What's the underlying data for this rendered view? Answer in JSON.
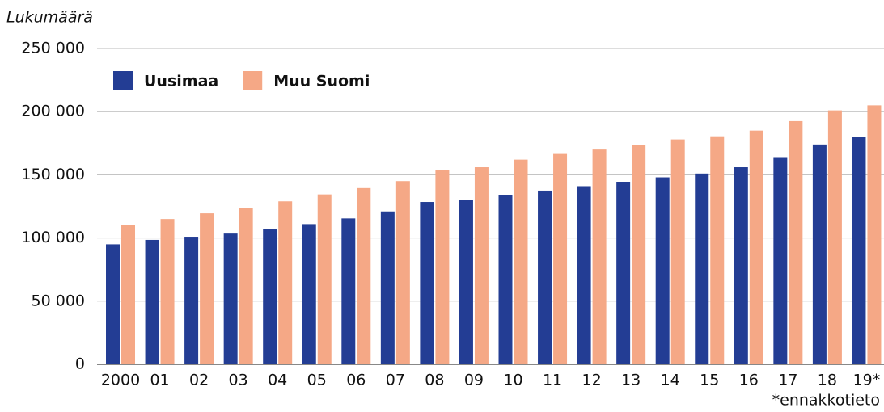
{
  "chart_data": {
    "type": "bar",
    "y_axis_label": "Lukumäärä",
    "footnote": "*ennakkotieto",
    "categories": [
      "2000",
      "01",
      "02",
      "03",
      "04",
      "05",
      "06",
      "07",
      "08",
      "09",
      "10",
      "11",
      "12",
      "13",
      "14",
      "15",
      "16",
      "17",
      "18",
      "19*"
    ],
    "series": [
      {
        "name": "Uusimaa",
        "color": "#233d94",
        "values": [
          95000,
          98500,
          101000,
          103500,
          107000,
          111000,
          115500,
          121000,
          128500,
          130000,
          134000,
          137500,
          141000,
          144500,
          148000,
          151000,
          156000,
          164000,
          174000,
          180000
        ]
      },
      {
        "name": "Muu Suomi",
        "color": "#f5a886",
        "values": [
          110000,
          115000,
          119500,
          124000,
          129000,
          134500,
          139500,
          145000,
          154000,
          156000,
          162000,
          166500,
          170000,
          173500,
          178000,
          180500,
          185000,
          192500,
          201000,
          205000
        ]
      }
    ],
    "ylim": [
      0,
      250000
    ],
    "yticks": [
      0,
      {
        "value": 50000,
        "label": "50 000"
      },
      {
        "value": 100000,
        "label": "100 000"
      },
      {
        "value": 150000,
        "label": "150 000"
      },
      {
        "value": 200000,
        "label": "200 000"
      },
      {
        "value": 250000,
        "label": "250 000"
      }
    ],
    "grid": true,
    "legend": "top-left"
  }
}
